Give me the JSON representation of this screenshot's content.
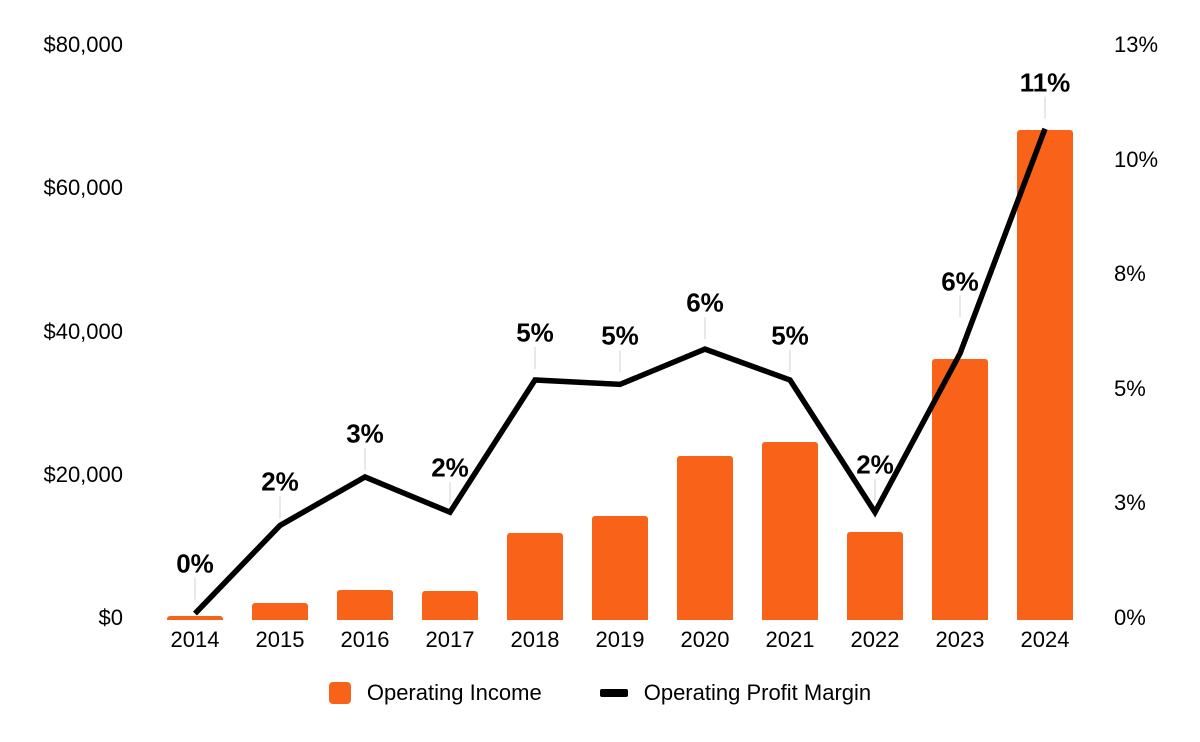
{
  "chart_data": {
    "type": "combo-bar-line",
    "title": "",
    "categories": [
      "2014",
      "2015",
      "2016",
      "2017",
      "2018",
      "2019",
      "2020",
      "2021",
      "2022",
      "2023",
      "2024"
    ],
    "series": [
      {
        "name": "Operating Income",
        "type": "bar",
        "axis": "left",
        "color": "#F96319",
        "values": [
          300,
          2100,
          3900,
          3800,
          11900,
          14200,
          22600,
          24600,
          12000,
          36200,
          68100
        ]
      },
      {
        "name": "Operating Profit Margin",
        "type": "line",
        "axis": "right",
        "color": "#000000",
        "values": [
          0.1,
          2.1,
          3.2,
          2.4,
          5.4,
          5.3,
          6.1,
          5.4,
          2.4,
          6.0,
          11.1
        ],
        "point_labels": [
          "0%",
          "2%",
          "3%",
          "2%",
          "5%",
          "5%",
          "6%",
          "5%",
          "2%",
          "6%",
          "11%"
        ]
      }
    ],
    "left_axis": {
      "min": 0,
      "max": 80000,
      "ticks": [
        {
          "value": 0,
          "label": "$0"
        },
        {
          "value": 20000,
          "label": "$20,000"
        },
        {
          "value": 40000,
          "label": "$40,000"
        },
        {
          "value": 60000,
          "label": "$60,000"
        },
        {
          "value": 80000,
          "label": "$80,000"
        }
      ]
    },
    "right_axis": {
      "min": 0,
      "max": 13,
      "ticks": [
        {
          "value": 0,
          "label": "0%"
        },
        {
          "value": 2.6,
          "label": "3%"
        },
        {
          "value": 5.2,
          "label": "5%"
        },
        {
          "value": 7.8,
          "label": "8%"
        },
        {
          "value": 10.4,
          "label": "10%"
        },
        {
          "value": 13,
          "label": "13%"
        }
      ]
    },
    "grid": false,
    "legend_position": "bottom",
    "background": "#FFFFFF",
    "leader_line_color": "#E8E8E8"
  }
}
